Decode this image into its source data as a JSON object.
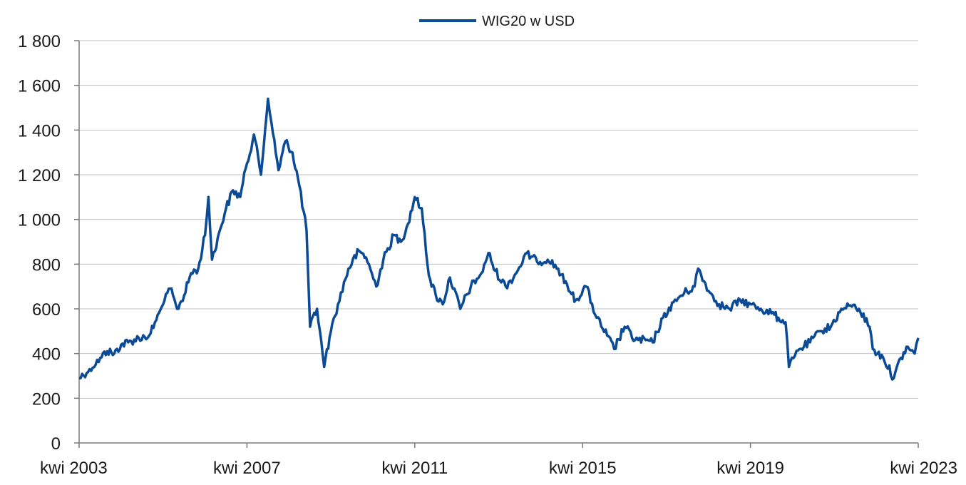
{
  "chart_data": {
    "type": "line",
    "title": "",
    "xlabel": "",
    "ylabel": "",
    "legend_position": "top-center",
    "grid": "horizontal",
    "ylim": [
      0,
      1800
    ],
    "xlim": [
      "2003-04-01",
      "2023-04-01"
    ],
    "y_ticks": [
      {
        "value": 0,
        "label": "0"
      },
      {
        "value": 200,
        "label": "200"
      },
      {
        "value": 400,
        "label": "400"
      },
      {
        "value": 600,
        "label": "600"
      },
      {
        "value": 800,
        "label": "800"
      },
      {
        "value": 1000,
        "label": "1 000"
      },
      {
        "value": 1200,
        "label": "1 200"
      },
      {
        "value": 1400,
        "label": "1 400"
      },
      {
        "value": 1600,
        "label": "1 600"
      },
      {
        "value": 1800,
        "label": "1 800"
      }
    ],
    "x_ticks": [
      {
        "value": "2003-04-01",
        "label": "kwi 2003"
      },
      {
        "value": "2007-04-01",
        "label": "kwi 2007"
      },
      {
        "value": "2011-04-01",
        "label": "kwi 2011"
      },
      {
        "value": "2015-04-01",
        "label": "kwi 2015"
      },
      {
        "value": "2019-04-01",
        "label": "kwi 2019"
      },
      {
        "value": "2023-04-01",
        "label": "kwi 2023"
      }
    ],
    "series": [
      {
        "name": "WIG20 w USD",
        "color": "#0b4a94",
        "points": [
          [
            "2003-04-01",
            290
          ],
          [
            "2003-07-01",
            330
          ],
          [
            "2003-10-01",
            380
          ],
          [
            "2003-12-01",
            410
          ],
          [
            "2004-02-01",
            400
          ],
          [
            "2004-04-01",
            440
          ],
          [
            "2004-06-01",
            450
          ],
          [
            "2004-09-01",
            470
          ],
          [
            "2004-12-01",
            480
          ],
          [
            "2005-02-01",
            550
          ],
          [
            "2005-04-01",
            620
          ],
          [
            "2005-06-01",
            690
          ],
          [
            "2005-08-01",
            600
          ],
          [
            "2005-10-01",
            660
          ],
          [
            "2005-12-01",
            760
          ],
          [
            "2006-02-01",
            780
          ],
          [
            "2006-04-01",
            930
          ],
          [
            "2006-05-01",
            1100
          ],
          [
            "2006-06-01",
            820
          ],
          [
            "2006-08-01",
            940
          ],
          [
            "2006-10-01",
            1050
          ],
          [
            "2006-12-01",
            1130
          ],
          [
            "2007-02-01",
            1100
          ],
          [
            "2007-04-01",
            1250
          ],
          [
            "2007-06-01",
            1380
          ],
          [
            "2007-08-01",
            1200
          ],
          [
            "2007-10-01",
            1540
          ],
          [
            "2007-11-01",
            1430
          ],
          [
            "2008-01-01",
            1220
          ],
          [
            "2008-03-01",
            1350
          ],
          [
            "2008-05-01",
            1300
          ],
          [
            "2008-07-01",
            1150
          ],
          [
            "2008-09-01",
            950
          ],
          [
            "2008-10-01",
            520
          ],
          [
            "2008-12-01",
            600
          ],
          [
            "2009-02-01",
            340
          ],
          [
            "2009-04-01",
            500
          ],
          [
            "2009-06-01",
            620
          ],
          [
            "2009-09-01",
            780
          ],
          [
            "2009-12-01",
            860
          ],
          [
            "2010-02-01",
            830
          ],
          [
            "2010-05-01",
            700
          ],
          [
            "2010-07-01",
            820
          ],
          [
            "2010-10-01",
            930
          ],
          [
            "2010-12-01",
            900
          ],
          [
            "2011-02-01",
            980
          ],
          [
            "2011-04-01",
            1100
          ],
          [
            "2011-06-01",
            1050
          ],
          [
            "2011-08-01",
            750
          ],
          [
            "2011-10-01",
            660
          ],
          [
            "2011-12-01",
            620
          ],
          [
            "2012-02-01",
            740
          ],
          [
            "2012-05-01",
            600
          ],
          [
            "2012-08-01",
            700
          ],
          [
            "2012-11-01",
            760
          ],
          [
            "2013-01-01",
            850
          ],
          [
            "2013-03-01",
            770
          ],
          [
            "2013-06-01",
            700
          ],
          [
            "2013-09-01",
            760
          ],
          [
            "2013-12-01",
            850
          ],
          [
            "2014-03-01",
            810
          ],
          [
            "2014-06-01",
            820
          ],
          [
            "2014-09-01",
            780
          ],
          [
            "2014-12-01",
            680
          ],
          [
            "2015-02-01",
            640
          ],
          [
            "2015-05-01",
            700
          ],
          [
            "2015-08-01",
            560
          ],
          [
            "2015-11-01",
            480
          ],
          [
            "2016-01-01",
            420
          ],
          [
            "2016-04-01",
            520
          ],
          [
            "2016-07-01",
            460
          ],
          [
            "2016-10-01",
            460
          ],
          [
            "2016-12-01",
            450
          ],
          [
            "2017-03-01",
            560
          ],
          [
            "2017-06-01",
            630
          ],
          [
            "2017-09-01",
            670
          ],
          [
            "2017-12-01",
            700
          ],
          [
            "2018-01-01",
            780
          ],
          [
            "2018-04-01",
            680
          ],
          [
            "2018-07-01",
            620
          ],
          [
            "2018-10-01",
            600
          ],
          [
            "2019-01-01",
            640
          ],
          [
            "2019-04-01",
            620
          ],
          [
            "2019-07-01",
            600
          ],
          [
            "2019-10-01",
            580
          ],
          [
            "2019-12-01",
            560
          ],
          [
            "2020-02-01",
            540
          ],
          [
            "2020-03-01",
            340
          ],
          [
            "2020-06-01",
            420
          ],
          [
            "2020-09-01",
            450
          ],
          [
            "2020-12-01",
            500
          ],
          [
            "2021-03-01",
            520
          ],
          [
            "2021-06-01",
            600
          ],
          [
            "2021-09-01",
            610
          ],
          [
            "2021-11-01",
            600
          ],
          [
            "2022-02-01",
            520
          ],
          [
            "2022-03-01",
            420
          ],
          [
            "2022-06-01",
            380
          ],
          [
            "2022-09-01",
            290
          ],
          [
            "2022-11-01",
            380
          ],
          [
            "2023-01-01",
            430
          ],
          [
            "2023-03-01",
            400
          ],
          [
            "2023-04-01",
            470
          ]
        ]
      }
    ]
  }
}
